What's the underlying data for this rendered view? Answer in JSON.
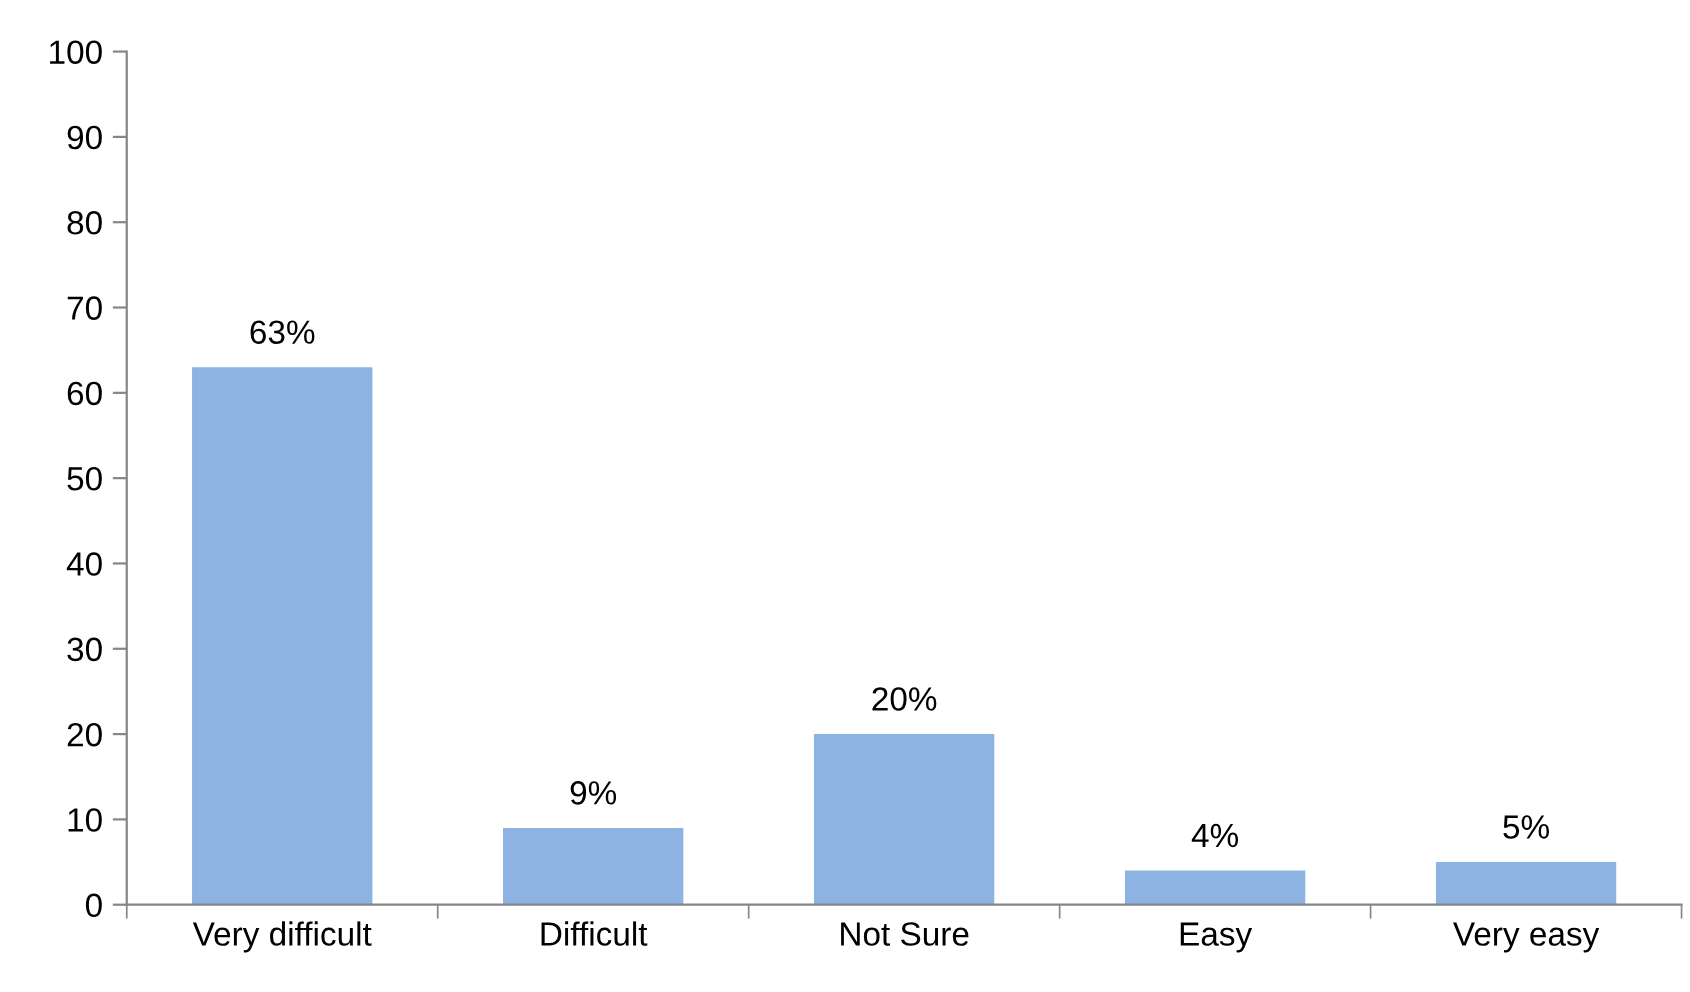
{
  "chart_data": {
    "type": "bar",
    "categories": [
      "Very difficult",
      "Difficult",
      "Not Sure",
      "Easy",
      "Very easy"
    ],
    "values": [
      63,
      9,
      20,
      4,
      5
    ],
    "value_labels": [
      "63%",
      "9%",
      "20%",
      "4%",
      "5%"
    ],
    "color": "#8db3e2",
    "ylim": [
      0,
      100
    ],
    "yticks": [
      0,
      10,
      20,
      30,
      40,
      50,
      60,
      70,
      80,
      90,
      100
    ],
    "grid": false,
    "legend": false
  }
}
